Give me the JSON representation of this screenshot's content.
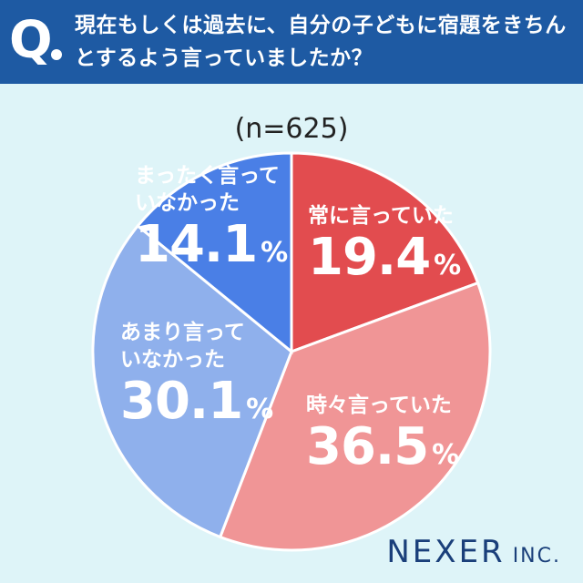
{
  "header": {
    "q_mark": "Q",
    "question": "現在もしくは過去に、自分の子どもに宿題をきちんとするよう言っていましたか？"
  },
  "sample": "(n=625)",
  "chart_data": {
    "type": "pie",
    "title": "",
    "slices": [
      {
        "label": "常に言っていた",
        "value": 19.4,
        "display": "19.4",
        "color": "#e24c4f"
      },
      {
        "label": "時々言っていた",
        "value": 36.5,
        "display": "36.5",
        "color": "#f09596"
      },
      {
        "label": "あまり言っていなかった",
        "value": 30.1,
        "display": "30.1",
        "color": "#8fb0ec"
      },
      {
        "label": "まったく言っていなかった",
        "value": 14.1,
        "display": "14.1",
        "color": "#4a7fe6"
      }
    ],
    "unit": "%"
  },
  "logo": {
    "main": "NEXER",
    "sub": "INC."
  }
}
